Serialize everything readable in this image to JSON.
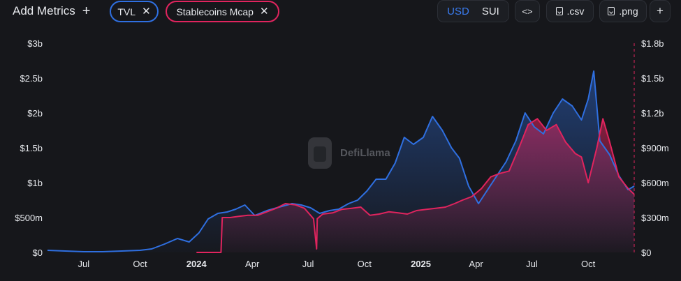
{
  "toolbar": {
    "add_metrics_label": "Add Metrics",
    "add_metrics_icon": "+",
    "chips": [
      {
        "label": "TVL",
        "color": "#2f6fe0"
      },
      {
        "label": "Stablecoins Mcap",
        "color": "#e0245e"
      }
    ],
    "currency_options": [
      "USD",
      "SUI"
    ],
    "currency_selected": "USD",
    "embed_label": "<>",
    "csv_label": ".csv",
    "png_label": ".png",
    "add_label": "+"
  },
  "watermark": "DefiLlama",
  "colors": {
    "tvl": "#2f6fe0",
    "stablecoins": "#e0245e",
    "background": "#16171b"
  },
  "chart_data": {
    "type": "area",
    "title": "",
    "x_ticks": [
      {
        "date": "2023-07-01",
        "label": "Jul",
        "bold": false
      },
      {
        "date": "2023-10-01",
        "label": "Oct",
        "bold": false
      },
      {
        "date": "2024-01-01",
        "label": "2024",
        "bold": true
      },
      {
        "date": "2024-04-01",
        "label": "Apr",
        "bold": false
      },
      {
        "date": "2024-07-01",
        "label": "Jul",
        "bold": false
      },
      {
        "date": "2024-10-01",
        "label": "Oct",
        "bold": false
      },
      {
        "date": "2025-01-01",
        "label": "2025",
        "bold": true
      },
      {
        "date": "2025-04-01",
        "label": "Apr",
        "bold": false
      },
      {
        "date": "2025-07-01",
        "label": "Jul",
        "bold": false
      },
      {
        "date": "2025-10-01",
        "label": "Oct",
        "bold": false
      }
    ],
    "xlim": [
      "2023-05-03",
      "2025-12-15"
    ],
    "y_left": {
      "label": "",
      "ylim": [
        0,
        3000000000
      ],
      "ticks": [
        "$0",
        "$500m",
        "$1b",
        "$1.5b",
        "$2b",
        "$2.5b",
        "$3b"
      ]
    },
    "y_right": {
      "label": "",
      "ylim": [
        0,
        1800000000
      ],
      "ticks": [
        "$0",
        "$300m",
        "$600m",
        "$900m",
        "$1.2b",
        "$1.5b",
        "$1.8b"
      ]
    },
    "grid": false,
    "series": [
      {
        "name": "TVL",
        "axis": "left",
        "x": [
          "2023-05-03",
          "2023-06-01",
          "2023-07-01",
          "2023-08-01",
          "2023-09-01",
          "2023-10-01",
          "2023-10-20",
          "2023-11-10",
          "2023-12-01",
          "2023-12-20",
          "2024-01-05",
          "2024-01-20",
          "2024-02-05",
          "2024-02-20",
          "2024-03-05",
          "2024-03-20",
          "2024-04-05",
          "2024-04-25",
          "2024-05-15",
          "2024-06-05",
          "2024-06-20",
          "2024-07-05",
          "2024-07-20",
          "2024-08-05",
          "2024-08-20",
          "2024-09-05",
          "2024-09-20",
          "2024-10-05",
          "2024-10-20",
          "2024-11-05",
          "2024-11-20",
          "2024-12-05",
          "2024-12-20",
          "2025-01-05",
          "2025-01-20",
          "2025-02-05",
          "2025-02-20",
          "2025-03-05",
          "2025-03-20",
          "2025-04-05",
          "2025-04-20",
          "2025-05-05",
          "2025-05-20",
          "2025-06-05",
          "2025-06-20",
          "2025-07-05",
          "2025-07-20",
          "2025-08-05",
          "2025-08-20",
          "2025-09-05",
          "2025-09-20",
          "2025-10-01",
          "2025-10-10",
          "2025-10-20",
          "2025-11-05",
          "2025-11-20",
          "2025-12-05",
          "2025-12-15"
        ],
        "values": [
          30000000,
          20000000,
          10000000,
          10000000,
          20000000,
          30000000,
          50000000,
          120000000,
          200000000,
          150000000,
          280000000,
          480000000,
          560000000,
          580000000,
          620000000,
          680000000,
          530000000,
          600000000,
          650000000,
          700000000,
          680000000,
          640000000,
          560000000,
          600000000,
          620000000,
          700000000,
          750000000,
          880000000,
          1050000000,
          1050000000,
          1280000000,
          1650000000,
          1550000000,
          1650000000,
          1950000000,
          1750000000,
          1500000000,
          1350000000,
          950000000,
          700000000,
          900000000,
          1100000000,
          1300000000,
          1600000000,
          2000000000,
          1800000000,
          1700000000,
          2000000000,
          2200000000,
          2100000000,
          1900000000,
          2200000000,
          2600000000,
          1600000000,
          1400000000,
          1100000000,
          900000000,
          950000000
        ]
      },
      {
        "name": "Stablecoins Mcap",
        "axis": "right",
        "x": [
          "2024-01-01",
          "2024-02-10",
          "2024-02-12",
          "2024-02-25",
          "2024-03-10",
          "2024-03-25",
          "2024-04-10",
          "2024-04-25",
          "2024-05-10",
          "2024-05-25",
          "2024-06-10",
          "2024-06-25",
          "2024-07-10",
          "2024-07-15",
          "2024-07-16",
          "2024-07-25",
          "2024-08-10",
          "2024-08-25",
          "2024-09-10",
          "2024-09-25",
          "2024-10-10",
          "2024-10-25",
          "2024-11-10",
          "2024-11-25",
          "2024-12-10",
          "2024-12-25",
          "2025-01-10",
          "2025-01-25",
          "2025-02-10",
          "2025-02-25",
          "2025-03-10",
          "2025-03-25",
          "2025-04-10",
          "2025-04-25",
          "2025-05-10",
          "2025-05-25",
          "2025-06-10",
          "2025-06-25",
          "2025-07-10",
          "2025-07-25",
          "2025-08-10",
          "2025-08-25",
          "2025-09-10",
          "2025-09-20",
          "2025-10-01",
          "2025-10-15",
          "2025-10-25",
          "2025-11-05",
          "2025-11-20",
          "2025-12-05",
          "2025-12-15"
        ],
        "values": [
          0,
          0,
          300000000,
          300000000,
          310000000,
          320000000,
          320000000,
          350000000,
          380000000,
          420000000,
          410000000,
          380000000,
          290000000,
          30000000,
          290000000,
          330000000,
          340000000,
          370000000,
          380000000,
          390000000,
          320000000,
          330000000,
          350000000,
          340000000,
          330000000,
          360000000,
          370000000,
          380000000,
          390000000,
          420000000,
          450000000,
          480000000,
          550000000,
          650000000,
          680000000,
          700000000,
          900000000,
          1100000000,
          1150000000,
          1050000000,
          1100000000,
          950000000,
          850000000,
          820000000,
          600000000,
          900000000,
          1150000000,
          950000000,
          650000000,
          550000000,
          500000000
        ]
      }
    ]
  }
}
